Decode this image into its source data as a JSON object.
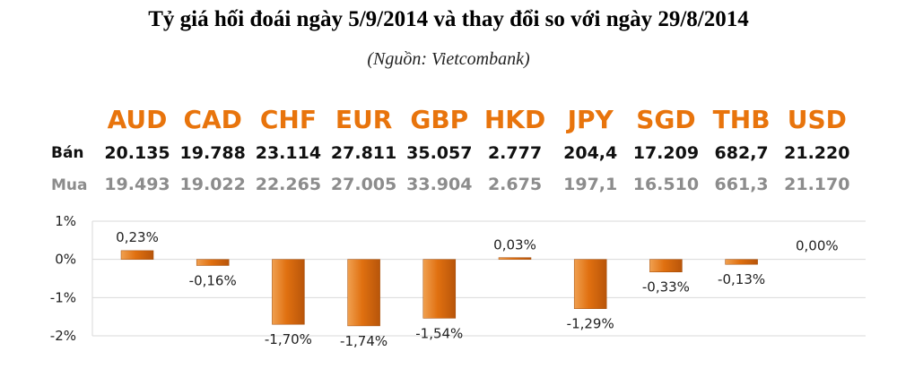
{
  "title": "Tỷ giá hối đoái ngày 5/9/2014 và thay đổi so với ngày 29/8/2014",
  "subtitle": "(Nguồn: Vietcombank)",
  "row_labels": {
    "sell": "Bán",
    "buy": "Mua"
  },
  "colors": {
    "currency_code": "#e8740c",
    "bar": "#e07010",
    "sell_text": "#111111",
    "buy_text": "#8c8c8c",
    "grid": "#d9d9d9",
    "axis_text": "#222222"
  },
  "chart_data": {
    "type": "bar",
    "categories": [
      "AUD",
      "CAD",
      "CHF",
      "EUR",
      "GBP",
      "HKD",
      "JPY",
      "SGD",
      "THB",
      "USD"
    ],
    "sell": [
      "20.135",
      "19.788",
      "23.114",
      "27.811",
      "35.057",
      "2.777",
      "204,4",
      "17.209",
      "682,7",
      "21.220"
    ],
    "buy": [
      "19.493",
      "19.022",
      "22.265",
      "27.005",
      "33.904",
      "2.675",
      "197,1",
      "16.510",
      "661,3",
      "21.170"
    ],
    "values": [
      0.23,
      -0.16,
      -1.7,
      -1.74,
      -1.54,
      0.03,
      -1.29,
      -0.33,
      -0.13,
      0.0
    ],
    "value_labels": [
      "0,23%",
      "-0,16%",
      "-1,70%",
      "-1,74%",
      "-1,54%",
      "0,03%",
      "-1,29%",
      "-0,33%",
      "-0,13%",
      "0,00%"
    ],
    "yticks": [
      1,
      0,
      -1,
      -2
    ],
    "ytick_labels": [
      "1%",
      "0%",
      "-1%",
      "-2%"
    ],
    "ylim": [
      -2,
      1
    ],
    "grid": true,
    "legend": "none"
  }
}
